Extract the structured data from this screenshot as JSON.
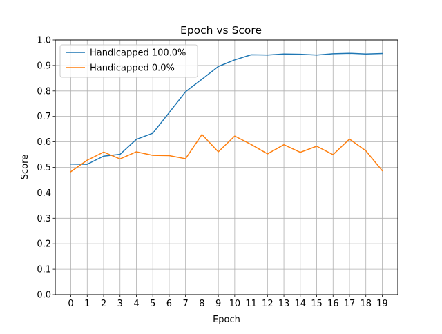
{
  "chart_data": {
    "type": "line",
    "title": "Epoch vs Score",
    "xlabel": "Epoch",
    "ylabel": "Score",
    "x": [
      0,
      1,
      2,
      3,
      4,
      5,
      6,
      7,
      8,
      9,
      10,
      11,
      12,
      13,
      14,
      15,
      16,
      17,
      18,
      19
    ],
    "xticks": [
      "0",
      "1",
      "2",
      "3",
      "4",
      "5",
      "6",
      "7",
      "8",
      "9",
      "10",
      "11",
      "12",
      "13",
      "14",
      "15",
      "16",
      "17",
      "18",
      "19"
    ],
    "yticks": [
      "0.0",
      "0.1",
      "0.2",
      "0.3",
      "0.4",
      "0.5",
      "0.6",
      "0.7",
      "0.8",
      "0.9",
      "1.0"
    ],
    "xlim": [
      -0.95,
      19.95
    ],
    "ylim": [
      0.0,
      1.0
    ],
    "grid": true,
    "legend_position": "top-left",
    "series": [
      {
        "name": "Handicapped 100.0%",
        "color": "#1f77b4",
        "values": [
          0.513,
          0.512,
          0.544,
          0.551,
          0.61,
          0.634,
          0.715,
          0.797,
          0.846,
          0.896,
          0.922,
          0.942,
          0.941,
          0.945,
          0.944,
          0.941,
          0.946,
          0.948,
          0.945,
          0.947
        ]
      },
      {
        "name": "Handicapped 0.0%",
        "color": "#ff7f0e",
        "values": [
          0.483,
          0.528,
          0.56,
          0.533,
          0.561,
          0.547,
          0.546,
          0.534,
          0.629,
          0.561,
          0.623,
          0.59,
          0.553,
          0.589,
          0.559,
          0.583,
          0.55,
          0.611,
          0.565,
          0.487
        ]
      }
    ]
  }
}
